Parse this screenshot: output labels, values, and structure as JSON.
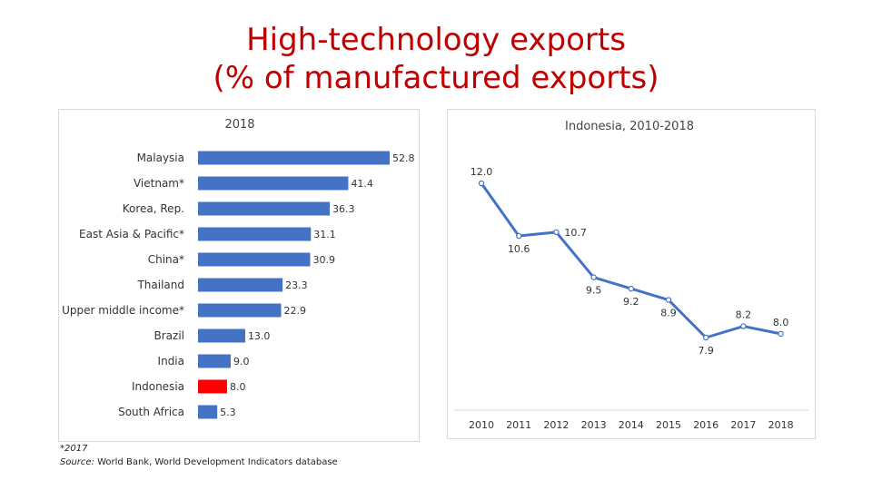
{
  "page": {
    "title_line1": "High-technology exports",
    "title_line2": "(% of manufactured exports)",
    "footnote": "*2017",
    "source_label": "Source:",
    "source_text": " World Bank, World Development Indicators database"
  },
  "colors": {
    "title": "#c00000",
    "bar": "#4472c4",
    "highlight": "#ff0000",
    "line": "#4472c4",
    "marker_fill": "#ffffff"
  },
  "chart_data": [
    {
      "type": "bar",
      "orientation": "horizontal",
      "title": "2018",
      "categories": [
        "Malaysia",
        "Vietnam*",
        "Korea, Rep.",
        "East Asia & Pacific*",
        "China*",
        "Thailand",
        "Upper middle income*",
        "Brazil",
        "India",
        "Indonesia",
        "South Africa"
      ],
      "values": [
        52.8,
        41.4,
        36.3,
        31.1,
        30.9,
        23.3,
        22.9,
        13.0,
        9.0,
        8.0,
        5.3
      ],
      "value_labels": [
        "52.8",
        "41.4",
        "36.3",
        "31.1",
        "30.9",
        "23.3",
        "22.9",
        "13.0",
        "9.0",
        "8.0",
        "5.3"
      ],
      "highlight": "Indonesia",
      "xlim": [
        0,
        55
      ]
    },
    {
      "type": "line",
      "title": "Indonesia, 2010-2018",
      "x": [
        "2010",
        "2011",
        "2012",
        "2013",
        "2014",
        "2015",
        "2016",
        "2017",
        "2018"
      ],
      "values": [
        12.0,
        10.6,
        10.7,
        9.5,
        9.2,
        8.9,
        7.9,
        8.2,
        8.0
      ],
      "value_labels": [
        "12.0",
        "10.6",
        "10.7",
        "9.5",
        "9.2",
        "8.9",
        "7.9",
        "8.2",
        "8.0"
      ],
      "label_positions": [
        "above",
        "below",
        "right",
        "below",
        "below",
        "below",
        "below",
        "above",
        "above"
      ],
      "ylim": [
        6.0,
        12.5
      ]
    }
  ]
}
